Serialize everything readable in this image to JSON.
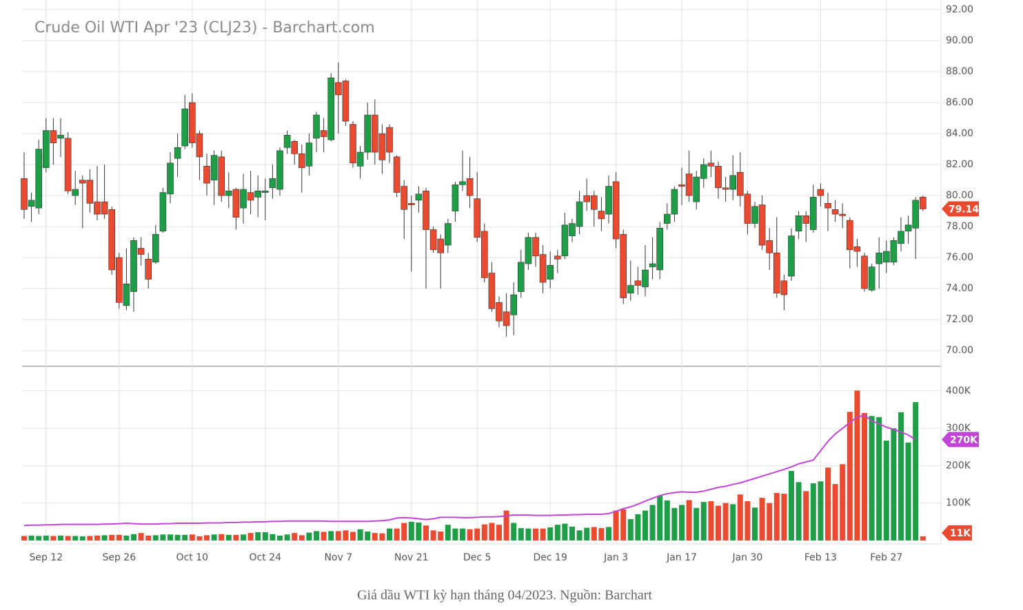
{
  "chart_data": {
    "type": "candlestick",
    "title": "Crude Oil WTI Apr '23 (CLJ23) - Barchart.com",
    "categories": [
      null,
      null,
      null,
      "Sep 12",
      null,
      null,
      null,
      null,
      null,
      null,
      null,
      null,
      null,
      "Sep 26",
      null,
      null,
      null,
      null,
      null,
      null,
      null,
      null,
      null,
      "Oct 10",
      null,
      null,
      null,
      null,
      null,
      null,
      null,
      null,
      null,
      "Oct 24",
      null,
      null,
      null,
      null,
      null,
      null,
      null,
      null,
      null,
      "Nov 7",
      null,
      null,
      null,
      null,
      null,
      null,
      null,
      null,
      null,
      "Nov 21",
      null,
      null,
      null,
      null,
      null,
      null,
      null,
      null,
      "Dec 5",
      null,
      null,
      null,
      null,
      null,
      null,
      null,
      null,
      null,
      "Dec 19",
      null,
      null,
      null,
      null,
      null,
      null,
      null,
      null,
      "Jan 3",
      null,
      null,
      null,
      null,
      null,
      null,
      null,
      null,
      "Jan 17",
      null,
      null,
      null,
      null,
      null,
      null,
      null,
      null,
      "Jan 30",
      null,
      null,
      null,
      null,
      null,
      null,
      null,
      null,
      null,
      "Feb 13",
      null,
      null,
      null,
      null,
      null,
      null,
      null,
      null,
      "Feb 27",
      null,
      null,
      null,
      null,
      null
    ],
    "open": [
      81.1,
      79.3,
      79.2,
      81.8,
      84.2,
      83.7,
      83.7,
      80.0,
      81.0,
      81.0,
      79.6,
      79.6,
      79.1,
      76.0,
      72.9,
      73.8,
      76.6,
      75.9,
      75.7,
      77.7,
      80.1,
      82.4,
      83.2,
      86.0,
      84.0,
      81.9,
      81.0,
      82.5,
      80.0,
      80.4,
      79.2,
      80.2,
      79.9,
      80.2,
      80.5,
      80.4,
      83.1,
      83.5,
      82.7,
      81.9,
      83.7,
      84.2,
      83.6,
      87.3,
      87.4,
      84.6,
      81.9,
      82.8,
      85.2,
      84.0,
      84.4,
      82.5,
      80.6,
      79.5,
      79.7,
      80.3,
      77.8,
      77.2,
      76.8,
      79.0,
      80.7,
      81.1,
      79.8,
      77.7,
      75.0,
      73.1,
      72.5,
      72.3,
      73.8,
      75.6,
      77.3,
      76.2,
      74.6,
      76.1,
      76.1,
      77.4,
      78.0,
      80.0,
      80.0,
      79.0,
      78.8,
      80.9,
      77.5,
      73.7,
      74.5,
      74.1,
      75.4,
      75.2,
      78.2,
      78.8,
      80.7,
      81.4,
      79.6,
      81.1,
      82.1,
      81.9,
      80.5,
      80.4,
      81.5,
      80.1,
      78.2,
      79.4,
      77.1,
      76.3,
      74.5,
      74.8,
      77.7,
      78.7,
      77.8,
      80.4,
      79.5,
      79.1,
      78.8,
      78.4,
      76.7,
      76.1,
      73.9,
      75.6,
      75.7,
      75.7,
      76.9,
      77.7,
      77.9,
      79.9
    ],
    "high": [
      82.8,
      80.2,
      83.6,
      85.0,
      85.0,
      85.0,
      84.1,
      81.6,
      81.3,
      81.7,
      81.9,
      82.0,
      79.3,
      76.3,
      76.6,
      77.3,
      77.3,
      76.3,
      78.1,
      80.5,
      82.8,
      84.0,
      86.5,
      86.6,
      84.2,
      82.7,
      82.9,
      82.9,
      81.5,
      80.5,
      81.4,
      81.6,
      81.3,
      81.1,
      82.0,
      83.1,
      84.2,
      83.6,
      83.3,
      84.0,
      85.4,
      85.0,
      87.9,
      88.6,
      87.5,
      84.8,
      83.2,
      86.0,
      86.2,
      84.6,
      84.6,
      82.6,
      81.0,
      80.0,
      80.6,
      80.5,
      78.0,
      77.5,
      78.5,
      80.9,
      82.9,
      82.5,
      81.5,
      78.2,
      75.7,
      73.5,
      73.7,
      74.4,
      76.5,
      77.6,
      77.6,
      76.8,
      76.4,
      76.5,
      78.9,
      78.5,
      80.3,
      81.1,
      80.3,
      79.9,
      81.3,
      81.5,
      77.8,
      75.8,
      75.4,
      76.8,
      77.3,
      78.3,
      79.5,
      80.6,
      81.8,
      82.9,
      81.6,
      82.4,
      82.9,
      82.2,
      81.2,
      82.6,
      82.8,
      80.3,
      79.6,
      80.0,
      77.9,
      78.6,
      74.9,
      77.9,
      79.0,
      79.0,
      80.7,
      80.8,
      80.2,
      79.7,
      79.5,
      78.6,
      77.2,
      76.3,
      75.6,
      77.3,
      77.1,
      77.3,
      78.6,
      78.7,
      79.9,
      80.0
    ],
    "low": [
      78.5,
      78.3,
      78.8,
      81.5,
      82.0,
      82.5,
      80.1,
      79.4,
      77.9,
      78.9,
      78.4,
      78.5,
      74.9,
      72.7,
      72.6,
      72.5,
      75.5,
      74.0,
      75.6,
      77.6,
      79.5,
      81.2,
      83.0,
      83.1,
      81.0,
      80.0,
      79.4,
      79.6,
      79.2,
      77.8,
      78.2,
      78.8,
      78.6,
      78.4,
      79.8,
      80.0,
      82.7,
      82.0,
      80.2,
      81.3,
      82.8,
      82.8,
      83.5,
      84.0,
      84.5,
      81.8,
      81.1,
      82.3,
      82.0,
      81.4,
      82.1,
      79.9,
      77.2,
      75.1,
      78.9,
      74.0,
      76.3,
      74.0,
      76.3,
      78.3,
      80.3,
      79.2,
      77.0,
      74.4,
      72.5,
      71.5,
      70.9,
      71.0,
      73.4,
      75.2,
      75.4,
      73.7,
      74.0,
      75.0,
      75.9,
      77.0,
      77.5,
      79.0,
      78.0,
      77.7,
      78.2,
      76.6,
      73.0,
      73.2,
      73.6,
      73.5,
      74.6,
      74.6,
      77.8,
      78.3,
      79.4,
      79.6,
      79.1,
      80.5,
      81.2,
      79.8,
      79.6,
      79.7,
      79.3,
      77.5,
      77.9,
      76.5,
      75.2,
      73.4,
      72.6,
      74.5,
      77.2,
      77.0,
      77.6,
      79.3,
      77.7,
      78.3,
      77.9,
      75.3,
      75.4,
      73.8,
      73.8,
      74.0,
      75.0,
      75.5,
      76.4,
      76.9,
      75.9,
      79.0
    ],
    "close": [
      79.1,
      79.7,
      83.0,
      84.2,
      83.4,
      83.9,
      80.3,
      80.4,
      80.8,
      79.5,
      78.8,
      78.8,
      75.2,
      73.1,
      74.3,
      77.1,
      76.2,
      74.6,
      77.5,
      80.2,
      82.1,
      83.1,
      85.6,
      83.4,
      82.5,
      80.8,
      82.6,
      80.0,
      80.3,
      78.6,
      80.4,
      79.7,
      80.3,
      80.3,
      81.1,
      82.9,
      83.9,
      82.7,
      81.8,
      83.4,
      85.2,
      83.8,
      87.6,
      86.5,
      84.8,
      82.1,
      82.8,
      85.2,
      82.8,
      82.3,
      82.8,
      80.2,
      79.1,
      79.4,
      80.1,
      77.8,
      76.5,
      76.3,
      78.2,
      80.7,
      80.9,
      80.0,
      77.3,
      74.7,
      72.7,
      71.9,
      71.6,
      73.6,
      75.7,
      77.3,
      76.1,
      74.4,
      75.5,
      75.9,
      78.1,
      78.2,
      79.6,
      79.6,
      79.1,
      78.5,
      80.6,
      77.2,
      73.4,
      74.2,
      74.2,
      75.2,
      75.6,
      77.9,
      78.8,
      80.4,
      80.6,
      80.0,
      81.2,
      82.0,
      81.9,
      80.5,
      80.4,
      81.3,
      80.0,
      78.2,
      79.3,
      76.8,
      76.3,
      73.7,
      73.6,
      77.4,
      78.7,
      78.2,
      79.9,
      80.0,
      79.2,
      78.8,
      78.7,
      76.5,
      76.4,
      74.0,
      75.4,
      76.3,
      76.4,
      77.1,
      77.7,
      78.1,
      79.7,
      79.14
    ],
    "up_color": "#1f9e48",
    "down_color": "#ea4a2f",
    "grid": true,
    "ylim": [
      69.07,
      92.18
    ],
    "yticks": [
      {
        "value": 70,
        "label": "70.00"
      },
      {
        "value": 72,
        "label": "72.00"
      },
      {
        "value": 74,
        "label": "74.00"
      },
      {
        "value": 76,
        "label": "76.00"
      },
      {
        "value": 78,
        "label": "78.00"
      },
      {
        "value": 80,
        "label": "80.00"
      },
      {
        "value": 82,
        "label": "82.00"
      },
      {
        "value": 84,
        "label": "84.00"
      },
      {
        "value": 86,
        "label": "86.00"
      },
      {
        "value": 88,
        "label": "88.00"
      },
      {
        "value": 90,
        "label": "90.00"
      },
      {
        "value": 92,
        "label": "92.00"
      }
    ],
    "volume": {
      "values": [
        12000,
        13000,
        12000,
        13000,
        12000,
        13000,
        12000,
        12000,
        11000,
        12000,
        13000,
        14000,
        15000,
        15000,
        13000,
        17000,
        20000,
        13000,
        14000,
        16000,
        16000,
        15000,
        15000,
        16000,
        11000,
        14000,
        16000,
        17000,
        15000,
        15000,
        16000,
        20000,
        22000,
        22000,
        17000,
        13000,
        16000,
        20000,
        14000,
        21000,
        25000,
        23000,
        25000,
        25000,
        27000,
        23000,
        30000,
        24000,
        20000,
        19000,
        32000,
        32000,
        47000,
        50000,
        48000,
        40000,
        27000,
        24000,
        42000,
        32000,
        32000,
        30000,
        32000,
        43000,
        47000,
        42000,
        80000,
        47000,
        33000,
        32000,
        32000,
        32000,
        35000,
        42000,
        45000,
        37000,
        27000,
        34000,
        36000,
        33000,
        36000,
        80000,
        83000,
        57000,
        70000,
        80000,
        95000,
        120000,
        107000,
        87000,
        95000,
        108000,
        87000,
        103000,
        105000,
        93000,
        100000,
        97000,
        123000,
        105000,
        88000,
        114000,
        100000,
        127000,
        125000,
        186000,
        156000,
        132000,
        153000,
        158000,
        195000,
        151000,
        204000,
        344000,
        401000,
        341000,
        333000,
        330000,
        267000,
        300000,
        343000,
        262000,
        370000,
        11000
      ],
      "last_value_label": "11K",
      "ylim": [
        0,
        442000
      ],
      "yticks": [
        {
          "value": 100000,
          "label": "100K"
        },
        {
          "value": 200000,
          "label": "200K"
        },
        {
          "value": 300000,
          "label": "300K"
        },
        {
          "value": 400000,
          "label": "400K"
        }
      ],
      "ma": {
        "color": "#c044d6",
        "last_value_label": "270K",
        "values": [
          40000,
          41000,
          41000,
          42000,
          42000,
          43000,
          43000,
          43000,
          43000,
          43000,
          43000,
          44000,
          44000,
          45000,
          46000,
          45000,
          44000,
          44000,
          44000,
          45000,
          45000,
          46000,
          46000,
          46000,
          46000,
          47000,
          47000,
          47000,
          48000,
          48000,
          49000,
          49000,
          50000,
          50000,
          51000,
          51000,
          52000,
          52000,
          52000,
          52000,
          52000,
          52000,
          51000,
          51000,
          51000,
          51000,
          51000,
          51000,
          52000,
          53000,
          55000,
          60000,
          61000,
          60000,
          58000,
          56000,
          58000,
          62000,
          62000,
          62000,
          61000,
          61000,
          62000,
          63000,
          63000,
          64000,
          66000,
          68000,
          68000,
          68000,
          67000,
          67000,
          67000,
          68000,
          68000,
          69000,
          69000,
          70000,
          70000,
          70000,
          72000,
          78000,
          85000,
          90000,
          97000,
          105000,
          113000,
          120000,
          125000,
          128000,
          130000,
          129000,
          129000,
          132000,
          137000,
          142000,
          145000,
          150000,
          154000,
          160000,
          166000,
          172000,
          178000,
          184000,
          190000,
          197000,
          205000,
          210000,
          215000,
          240000,
          265000,
          285000,
          300000,
          315000,
          330000,
          335000,
          320000,
          312000,
          303000,
          297000,
          290000,
          282000,
          270000,
          null
        ]
      }
    }
  },
  "caption": "Giá dầu WTI kỳ hạn tháng 04/2023. Nguồn: Barchart"
}
